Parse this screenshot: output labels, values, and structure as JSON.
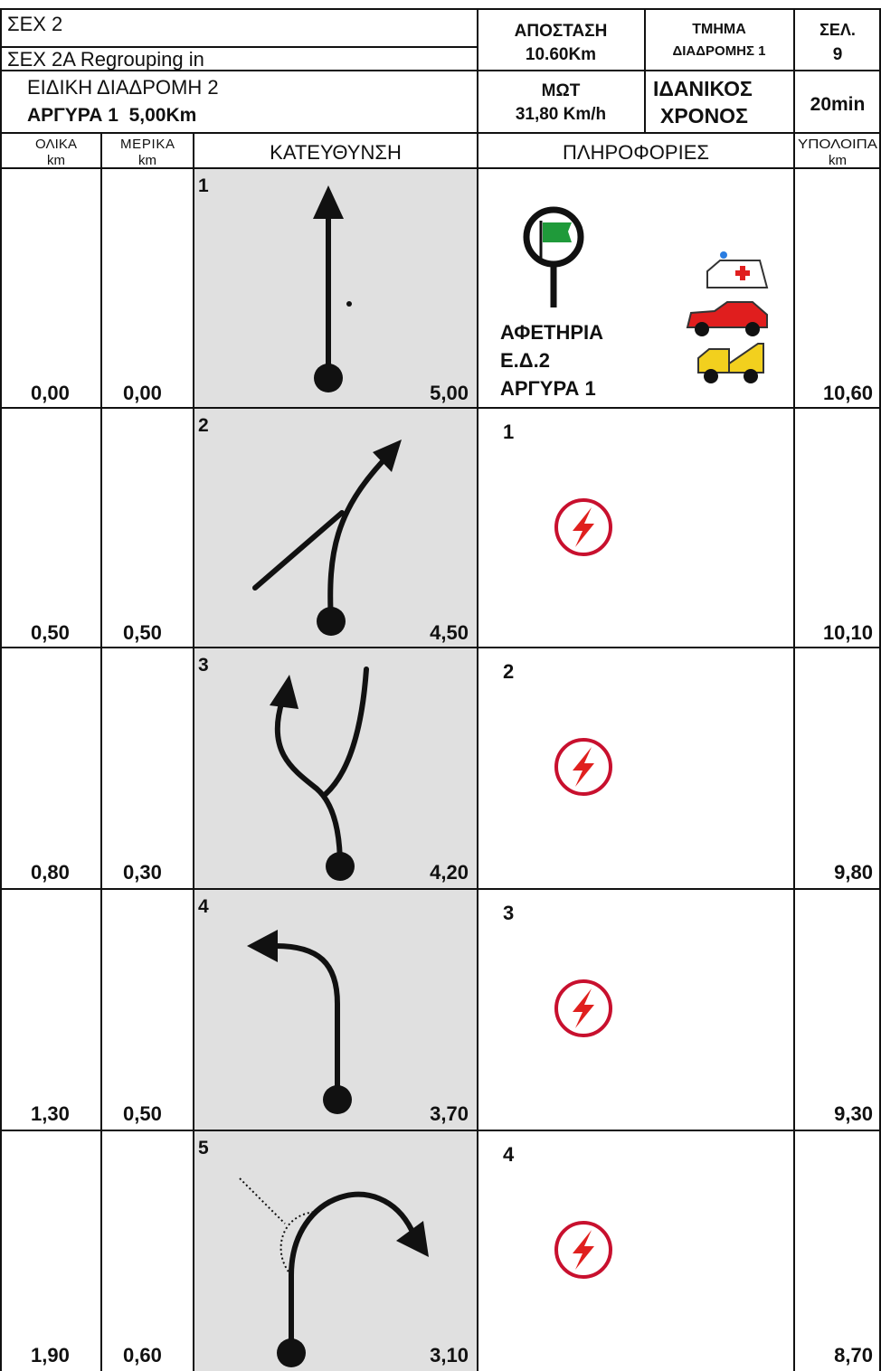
{
  "header": {
    "section": "ΣΕΧ 2",
    "regroup": "ΣΕΧ 2A Regrouping in",
    "stage": "ΕΙΔΙΚΗ ΔΙΑΔΡΟΜΗ 2",
    "stage_name": "ΑΡΓΥΡΑ 1  5,00Km",
    "distance_label": "ΑΠΟΣΤΑΣΗ",
    "distance": "10.60Km",
    "part_label": "ΤΜΗΜΑ",
    "part": "ΔΙΑΔΡΟΜΗΣ 1",
    "page_label": "ΣΕΛ.",
    "page": "9",
    "speed_label": "ΜΩΤ",
    "speed": "31,80 Km/h",
    "ideal_label": "ΙΔΑΝΙΚΟΣ",
    "ideal_label2": "ΧΡΟΝΟΣ",
    "ideal_time": "20min"
  },
  "columns": {
    "total": "ΟΛΙΚΑ",
    "total_unit": "km",
    "partial": "ΜΕΡΙΚΑ",
    "partial_unit": "km",
    "direction": "ΚΑΤΕΥΘΥΝΣΗ",
    "info": "ΠΛΗΡΟΦΟΡΙΕΣ",
    "remaining": "ΥΠΟΛΟΙΠΑ",
    "remaining_unit": "km"
  },
  "rows": [
    {
      "number": "1",
      "total": "0,00",
      "partial": "0,00",
      "stage_remaining": "5,00",
      "remaining": "10,60",
      "info_texts": [
        "ΑΦΕΤΗΡΙΑ",
        "Ε.Δ.2",
        "ΑΡΓΥΡΑ 1"
      ]
    },
    {
      "number": "2",
      "total": "0,50",
      "partial": "0,50",
      "stage_remaining": "4,50",
      "remaining": "10,10",
      "info_number": "1"
    },
    {
      "number": "3",
      "total": "0,80",
      "partial": "0,30",
      "stage_remaining": "4,20",
      "remaining": "9,80",
      "info_number": "2"
    },
    {
      "number": "4",
      "total": "1,30",
      "partial": "0,50",
      "stage_remaining": "3,70",
      "remaining": "9,30",
      "info_number": "3"
    },
    {
      "number": "5",
      "total": "1,90",
      "partial": "0,60",
      "stage_remaining": "3,10",
      "remaining": "8,70",
      "info_number": "4"
    }
  ]
}
